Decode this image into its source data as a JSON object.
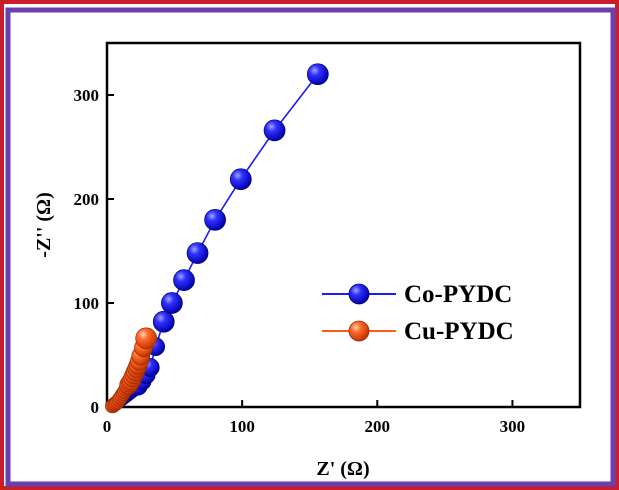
{
  "chart_data": {
    "type": "scatter",
    "xlabel": "Z' (Ω)",
    "ylabel": "-Z'' (Ω)",
    "xlim": [
      0,
      350
    ],
    "ylim": [
      0,
      350
    ],
    "xticks": [
      0,
      100,
      200,
      300
    ],
    "yticks": [
      0,
      100,
      200,
      300
    ],
    "grid": false,
    "legend_position": "right",
    "series": [
      {
        "name": "Co-PYDC",
        "color": "#1a1aff",
        "marker": "sphere",
        "line": true,
        "x": [
          5,
          7,
          9,
          11,
          13,
          15,
          17,
          19,
          21,
          23,
          26,
          29,
          32,
          36,
          42,
          48,
          57,
          67,
          80,
          99,
          124,
          156
        ],
        "y": [
          2,
          4,
          6,
          8,
          10,
          12,
          14,
          16,
          18,
          20,
          25,
          31,
          38,
          58,
          82,
          100,
          122,
          148,
          180,
          219,
          266,
          320
        ]
      },
      {
        "name": "Cu-PYDC",
        "color": "#ff5a1f",
        "marker": "sphere",
        "line": true,
        "x": [
          4,
          5,
          6,
          7,
          8,
          9,
          10,
          11,
          12,
          13,
          14,
          15,
          16,
          17,
          18,
          19,
          20,
          21,
          22,
          23,
          24,
          25,
          27,
          29
        ],
        "y": [
          1,
          2,
          3,
          4,
          5,
          7,
          9,
          11,
          13,
          15,
          17,
          19,
          21,
          23,
          25,
          28,
          31,
          34,
          37,
          40,
          44,
          49,
          57,
          66
        ]
      }
    ]
  }
}
